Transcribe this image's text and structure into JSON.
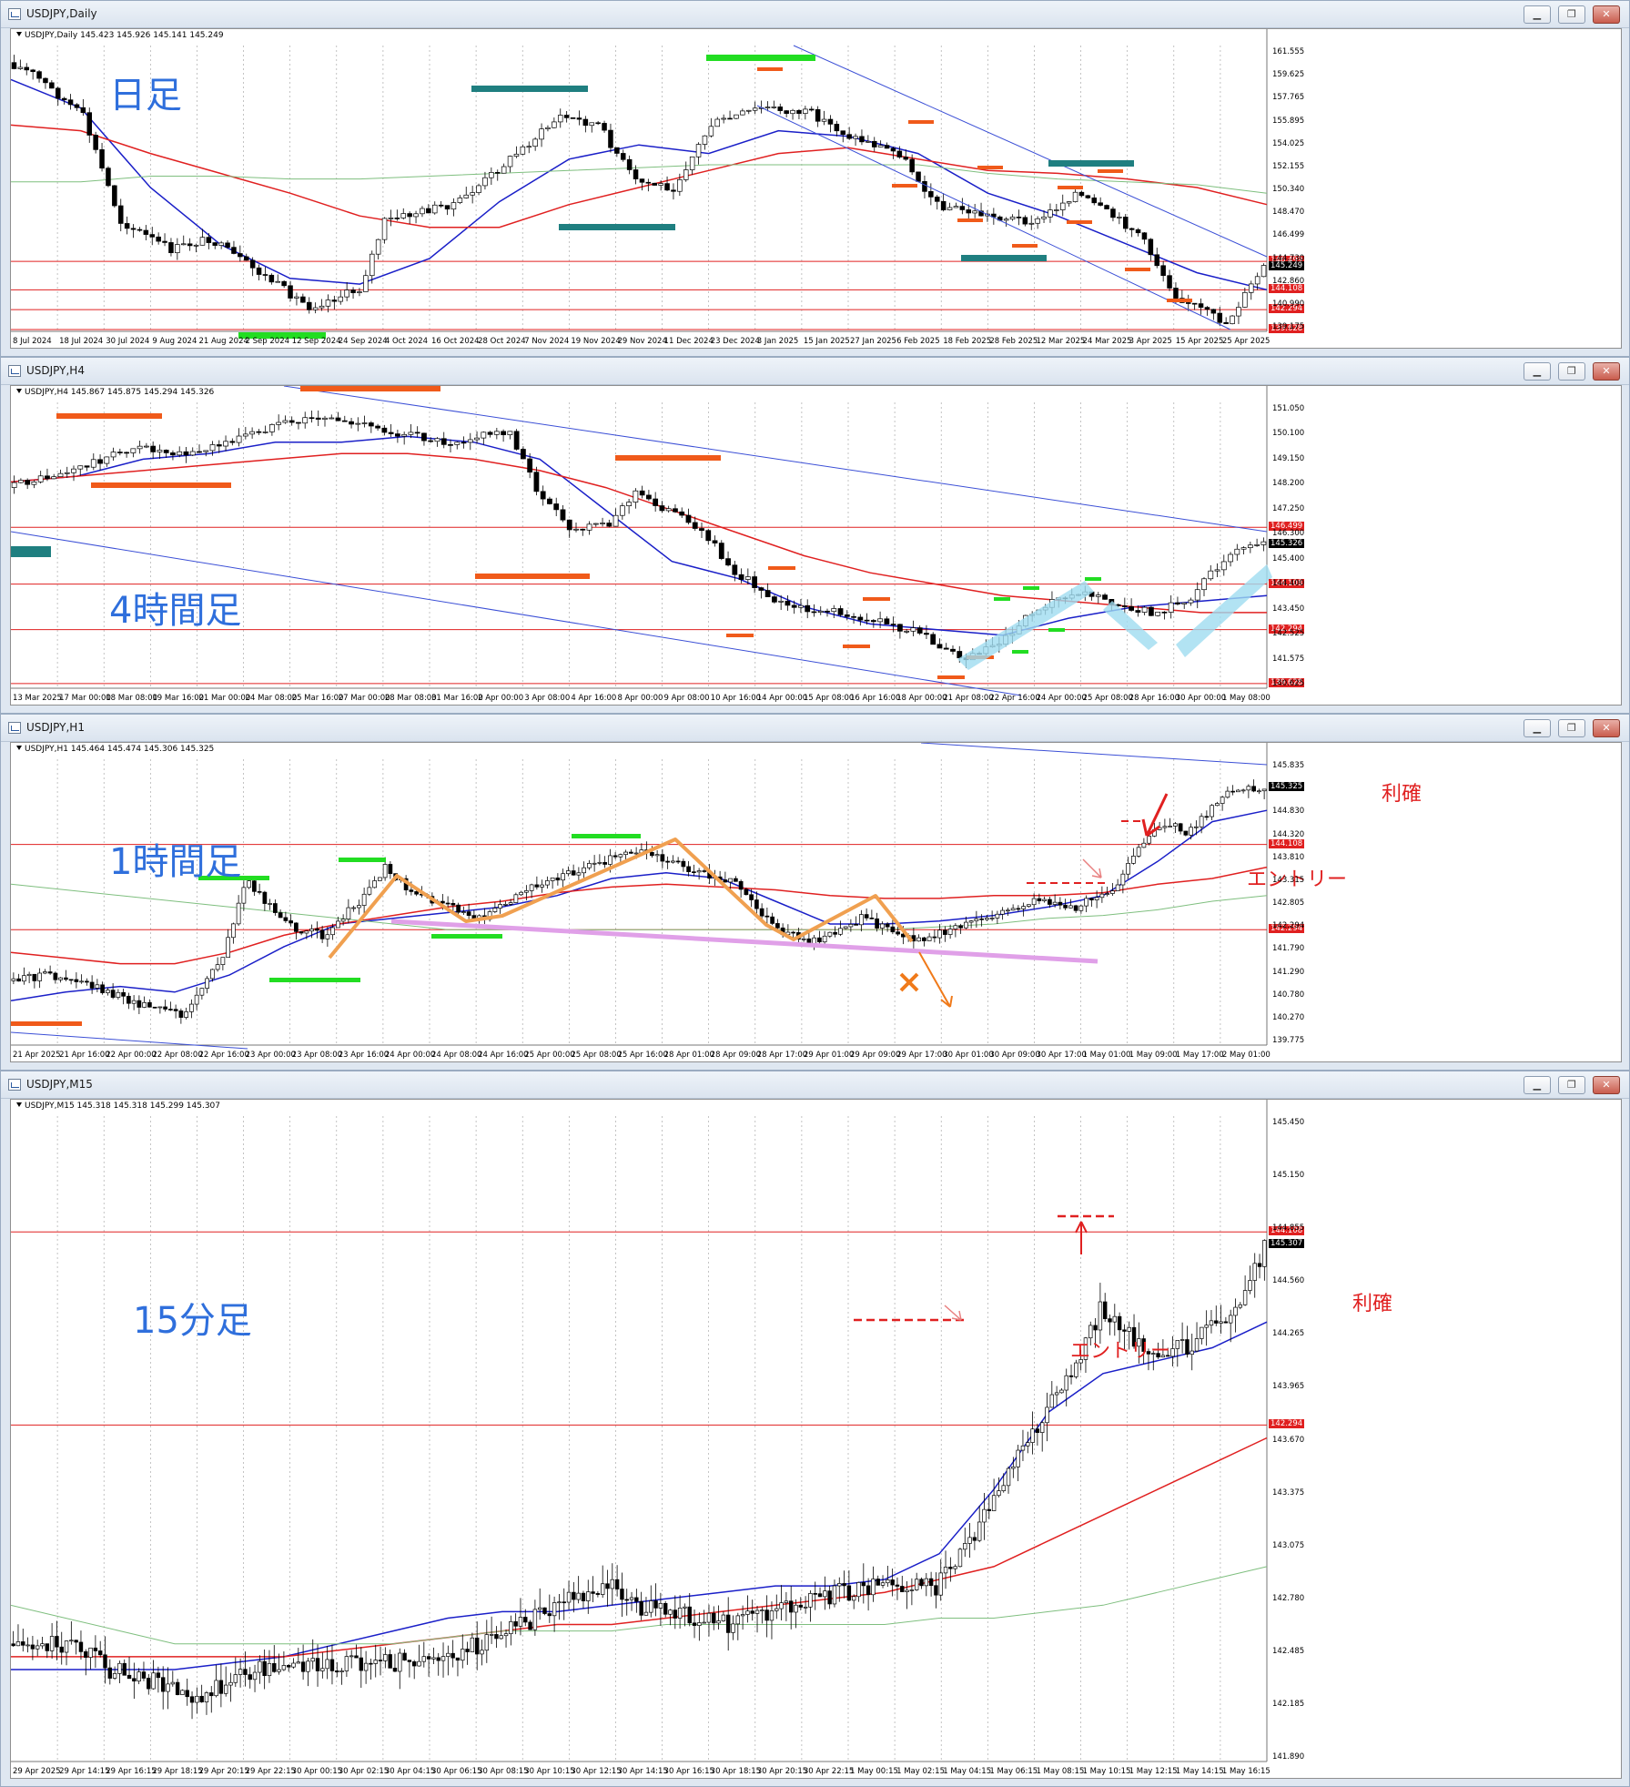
{
  "windows": [
    {
      "id": "daily",
      "title": "USDJPY,Daily",
      "info": "USDJPY,Daily  145.423 145.926 145.141 145.249",
      "label": "日足",
      "price_tag": "145.249",
      "levels": [
        {
          "value": "146.499",
          "color": "#e02020"
        },
        {
          "value": "144.108",
          "color": "#e02020"
        },
        {
          "value": "142.294",
          "color": "#e02020"
        },
        {
          "value": "139.628",
          "color": "#e02020"
        }
      ],
      "y_axis": [
        "161.555",
        "159.625",
        "157.765",
        "155.895",
        "154.025",
        "152.155",
        "150.340",
        "148.470",
        "146.499",
        "144.730",
        "142.860",
        "140.990",
        "139.175"
      ],
      "x_axis": [
        "8 Jul 2024",
        "18 Jul 2024",
        "30 Jul 2024",
        "9 Aug 2024",
        "21 Aug 2024",
        "2 Sep 2024",
        "12 Sep 2024",
        "24 Sep 2024",
        "4 Oct 2024",
        "16 Oct 2024",
        "28 Oct 2024",
        "7 Nov 2024",
        "19 Nov 2024",
        "29 Nov 2024",
        "11 Dec 2024",
        "23 Dec 2024",
        "3 Jan 2025",
        "15 Jan 2025",
        "27 Jan 2025",
        "6 Feb 2025",
        "18 Feb 2025",
        "28 Feb 2025",
        "12 Mar 2025",
        "24 Mar 2025",
        "3 Apr 2025",
        "15 Apr 2025",
        "25 Apr 2025"
      ],
      "annotations": []
    },
    {
      "id": "h4",
      "title": "USDJPY,H4",
      "info": "USDJPY,H4  145.867 145.875 145.294 145.326",
      "label": "4時間足",
      "price_tag": "145.326",
      "levels": [
        {
          "value": "146.499",
          "color": "#e02020"
        },
        {
          "value": "144.108",
          "color": "#e02020"
        },
        {
          "value": "142.294",
          "color": "#e02020"
        },
        {
          "value": "139.628",
          "color": "#e02020"
        }
      ],
      "y_axis": [
        "151.050",
        "150.100",
        "149.150",
        "148.200",
        "147.250",
        "146.300",
        "145.400",
        "144.400",
        "143.450",
        "142.525",
        "141.575",
        "140.625"
      ],
      "x_axis": [
        "13 Mar 2025",
        "17 Mar 00:00",
        "18 Mar 08:00",
        "19 Mar 16:00",
        "21 Mar 00:00",
        "24 Mar 08:00",
        "25 Mar 16:00",
        "27 Mar 00:00",
        "28 Mar 08:00",
        "31 Mar 16:00",
        "2 Apr 00:00",
        "3 Apr 08:00",
        "4 Apr 16:00",
        "8 Apr 00:00",
        "9 Apr 08:00",
        "10 Apr 16:00",
        "14 Apr 00:00",
        "15 Apr 08:00",
        "16 Apr 16:00",
        "18 Apr 00:00",
        "21 Apr 08:00",
        "22 Apr 16:00",
        "24 Apr 00:00",
        "25 Apr 08:00",
        "28 Apr 16:00",
        "30 Apr 00:00",
        "1 May 08:00"
      ],
      "annotations": []
    },
    {
      "id": "h1",
      "title": "USDJPY,H1",
      "info": "USDJPY,H1  145.464 145.474 145.306 145.325",
      "label": "1時間足",
      "price_tag": "145.325",
      "levels": [
        {
          "value": "144.108",
          "color": "#e02020"
        },
        {
          "value": "142.294",
          "color": "#e02020"
        }
      ],
      "y_axis": [
        "145.835",
        "145.325",
        "144.830",
        "144.320",
        "143.810",
        "143.315",
        "142.805",
        "142.294",
        "141.790",
        "141.290",
        "140.780",
        "140.270",
        "139.775"
      ],
      "x_axis": [
        "21 Apr 2025",
        "21 Apr 16:00",
        "22 Apr 00:00",
        "22 Apr 08:00",
        "22 Apr 16:00",
        "23 Apr 00:00",
        "23 Apr 08:00",
        "23 Apr 16:00",
        "24 Apr 00:00",
        "24 Apr 08:00",
        "24 Apr 16:00",
        "25 Apr 00:00",
        "25 Apr 08:00",
        "25 Apr 16:00",
        "28 Apr 01:00",
        "28 Apr 09:00",
        "28 Apr 17:00",
        "29 Apr 01:00",
        "29 Apr 09:00",
        "29 Apr 17:00",
        "30 Apr 01:00",
        "30 Apr 09:00",
        "30 Apr 17:00",
        "1 May 01:00",
        "1 May 09:00",
        "1 May 17:00",
        "2 May 01:00"
      ],
      "annotations": [
        {
          "text": "利確"
        },
        {
          "text": "エントリー"
        }
      ]
    },
    {
      "id": "m15",
      "title": "USDJPY,M15",
      "info": "USDJPY,M15  145.318 145.318 145.299 145.307",
      "label": "15分足",
      "price_tag": "145.307",
      "levels": [
        {
          "value": "144.108",
          "color": "#e02020"
        },
        {
          "value": "142.294",
          "color": "#e02020"
        }
      ],
      "y_axis": [
        "145.450",
        "145.150",
        "144.855",
        "144.560",
        "144.265",
        "143.965",
        "143.670",
        "143.375",
        "143.075",
        "142.780",
        "142.485",
        "142.185",
        "141.890"
      ],
      "x_axis": [
        "29 Apr 2025",
        "29 Apr 14:15",
        "29 Apr 16:15",
        "29 Apr 18:15",
        "29 Apr 20:15",
        "29 Apr 22:15",
        "30 Apr 00:15",
        "30 Apr 02:15",
        "30 Apr 04:15",
        "30 Apr 06:15",
        "30 Apr 08:15",
        "30 Apr 10:15",
        "30 Apr 12:15",
        "30 Apr 14:15",
        "30 Apr 16:15",
        "30 Apr 18:15",
        "30 Apr 20:15",
        "30 Apr 22:15",
        "1 May 00:15",
        "1 May 02:15",
        "1 May 04:15",
        "1 May 06:15",
        "1 May 08:15",
        "1 May 10:15",
        "1 May 12:15",
        "1 May 14:15",
        "1 May 16:15"
      ],
      "annotations": [
        {
          "text": "エントリー"
        },
        {
          "text": "利確"
        }
      ]
    }
  ],
  "window_buttons": {
    "minimize": "▁",
    "restore": "❐",
    "close": "✕"
  },
  "colors": {
    "ma_fast": "#1a1fc8",
    "ma_mid": "#e02020",
    "ma_slow": "#7fbf7f",
    "zone_teal": "#1f7f80",
    "zone_orange": "#f05a1a",
    "zone_green": "#22dd22",
    "wave": "#f0a050",
    "neckline": "#e0a0e8"
  }
}
